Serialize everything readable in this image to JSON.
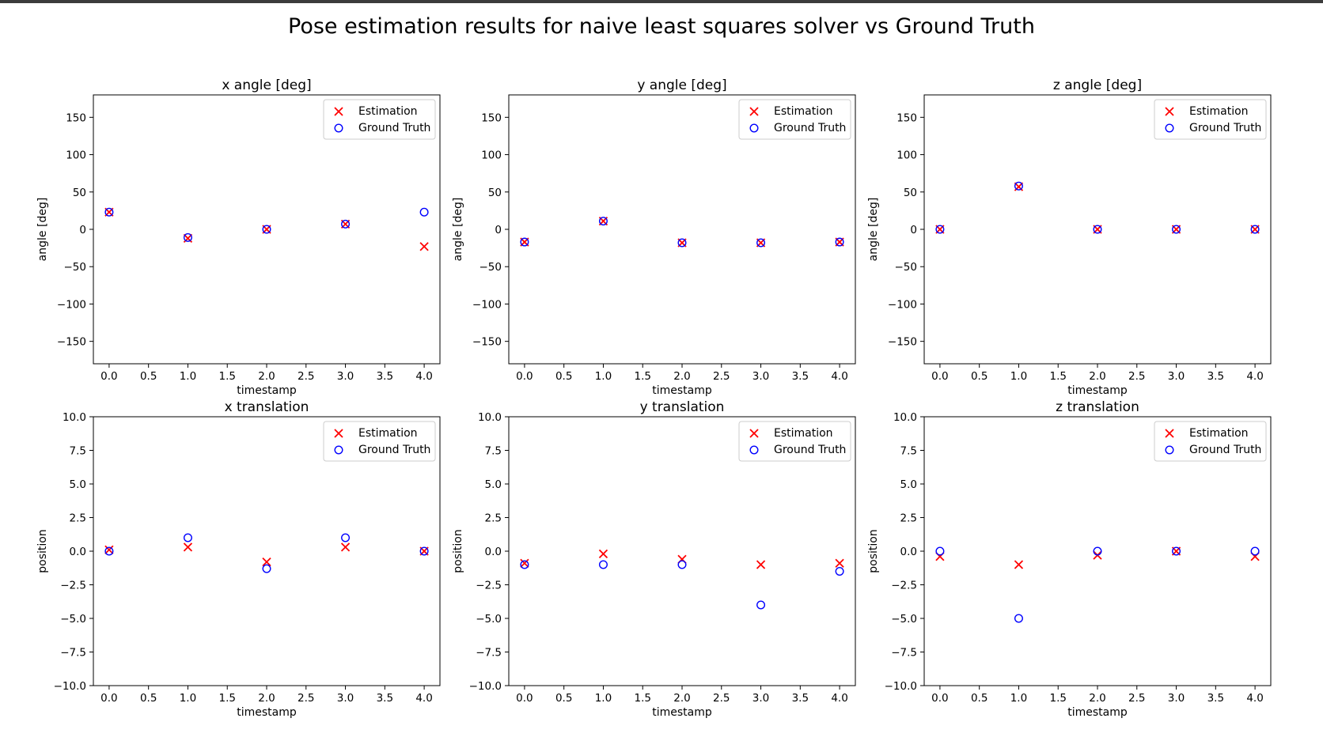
{
  "figure": {
    "suptitle": "Pose estimation results for naive least squares solver vs Ground Truth",
    "colors": {
      "estimation": "#ff0000",
      "ground_truth": "#0000ff",
      "axes": "#000000"
    }
  },
  "chart_data": [
    {
      "type": "scatter",
      "title": "x angle [deg]",
      "xlabel": "timestamp",
      "ylabel": "angle [deg]",
      "xlim": [
        -0.2,
        4.2
      ],
      "ylim": [
        -180,
        180
      ],
      "xticks": [
        0.0,
        0.5,
        1.0,
        1.5,
        2.0,
        2.5,
        3.0,
        3.5,
        4.0
      ],
      "xtick_labels": [
        "0.0",
        "0.5",
        "1.0",
        "1.5",
        "2.0",
        "2.5",
        "3.0",
        "3.5",
        "4.0"
      ],
      "yticks": [
        150,
        100,
        50,
        0,
        -50,
        -100,
        -150
      ],
      "ytick_labels": [
        "150",
        "100",
        "50",
        "0",
        "−50",
        "−100",
        "−150"
      ],
      "legend": "upper right",
      "series": [
        {
          "name": "Estimation",
          "marker": "x",
          "color": "#ff0000",
          "x": [
            0,
            1,
            2,
            3,
            4
          ],
          "y": [
            23,
            -12,
            0,
            7,
            -23
          ]
        },
        {
          "name": "Ground Truth",
          "marker": "o",
          "color": "#0000ff",
          "x": [
            0,
            1,
            2,
            3,
            4
          ],
          "y": [
            23,
            -11,
            0,
            7,
            23
          ]
        }
      ]
    },
    {
      "type": "scatter",
      "title": "y angle [deg]",
      "xlabel": "timestamp",
      "ylabel": "angle [deg]",
      "xlim": [
        -0.2,
        4.2
      ],
      "ylim": [
        -180,
        180
      ],
      "xticks": [
        0.0,
        0.5,
        1.0,
        1.5,
        2.0,
        2.5,
        3.0,
        3.5,
        4.0
      ],
      "xtick_labels": [
        "0.0",
        "0.5",
        "1.0",
        "1.5",
        "2.0",
        "2.5",
        "3.0",
        "3.5",
        "4.0"
      ],
      "yticks": [
        150,
        100,
        50,
        0,
        -50,
        -100,
        -150
      ],
      "ytick_labels": [
        "150",
        "100",
        "50",
        "0",
        "−50",
        "−100",
        "−150"
      ],
      "legend": "upper right",
      "series": [
        {
          "name": "Estimation",
          "marker": "x",
          "color": "#ff0000",
          "x": [
            0,
            1,
            2,
            3,
            4
          ],
          "y": [
            -17,
            11,
            -18,
            -18,
            -17
          ]
        },
        {
          "name": "Ground Truth",
          "marker": "o",
          "color": "#0000ff",
          "x": [
            0,
            1,
            2,
            3,
            4
          ],
          "y": [
            -17,
            11,
            -18,
            -18,
            -17
          ]
        }
      ]
    },
    {
      "type": "scatter",
      "title": "z angle [deg]",
      "xlabel": "timestamp",
      "ylabel": "angle [deg]",
      "xlim": [
        -0.2,
        4.2
      ],
      "ylim": [
        -180,
        180
      ],
      "xticks": [
        0.0,
        0.5,
        1.0,
        1.5,
        2.0,
        2.5,
        3.0,
        3.5,
        4.0
      ],
      "xtick_labels": [
        "0.0",
        "0.5",
        "1.0",
        "1.5",
        "2.0",
        "2.5",
        "3.0",
        "3.5",
        "4.0"
      ],
      "yticks": [
        150,
        100,
        50,
        0,
        -50,
        -100,
        -150
      ],
      "ytick_labels": [
        "150",
        "100",
        "50",
        "0",
        "−50",
        "−100",
        "−150"
      ],
      "legend": "upper right",
      "series": [
        {
          "name": "Estimation",
          "marker": "x",
          "color": "#ff0000",
          "x": [
            0,
            1,
            2,
            3,
            4
          ],
          "y": [
            0,
            57,
            0,
            0,
            0
          ]
        },
        {
          "name": "Ground Truth",
          "marker": "o",
          "color": "#0000ff",
          "x": [
            0,
            1,
            2,
            3,
            4
          ],
          "y": [
            0,
            58,
            0,
            0,
            0
          ]
        }
      ]
    },
    {
      "type": "scatter",
      "title": "x translation",
      "xlabel": "timestamp",
      "ylabel": "position",
      "xlim": [
        -0.2,
        4.2
      ],
      "ylim": [
        -10,
        10
      ],
      "xticks": [
        0.0,
        0.5,
        1.0,
        1.5,
        2.0,
        2.5,
        3.0,
        3.5,
        4.0
      ],
      "xtick_labels": [
        "0.0",
        "0.5",
        "1.0",
        "1.5",
        "2.0",
        "2.5",
        "3.0",
        "3.5",
        "4.0"
      ],
      "yticks": [
        10.0,
        7.5,
        5.0,
        2.5,
        0.0,
        -2.5,
        -5.0,
        -7.5,
        -10.0
      ],
      "ytick_labels": [
        "10.0",
        "7.5",
        "5.0",
        "2.5",
        "0.0",
        "−2.5",
        "−5.0",
        "−7.5",
        "−10.0"
      ],
      "legend": "upper right",
      "series": [
        {
          "name": "Estimation",
          "marker": "x",
          "color": "#ff0000",
          "x": [
            0,
            1,
            2,
            3,
            4
          ],
          "y": [
            0.1,
            0.3,
            -0.8,
            0.3,
            0.0
          ]
        },
        {
          "name": "Ground Truth",
          "marker": "o",
          "color": "#0000ff",
          "x": [
            0,
            1,
            2,
            3,
            4
          ],
          "y": [
            0.0,
            1.0,
            -1.3,
            1.0,
            0.0
          ]
        }
      ]
    },
    {
      "type": "scatter",
      "title": "y translation",
      "xlabel": "timestamp",
      "ylabel": "position",
      "xlim": [
        -0.2,
        4.2
      ],
      "ylim": [
        -10,
        10
      ],
      "xticks": [
        0.0,
        0.5,
        1.0,
        1.5,
        2.0,
        2.5,
        3.0,
        3.5,
        4.0
      ],
      "xtick_labels": [
        "0.0",
        "0.5",
        "1.0",
        "1.5",
        "2.0",
        "2.5",
        "3.0",
        "3.5",
        "4.0"
      ],
      "yticks": [
        10.0,
        7.5,
        5.0,
        2.5,
        0.0,
        -2.5,
        -5.0,
        -7.5,
        -10.0
      ],
      "ytick_labels": [
        "10.0",
        "7.5",
        "5.0",
        "2.5",
        "0.0",
        "−2.5",
        "−5.0",
        "−7.5",
        "−10.0"
      ],
      "legend": "upper right",
      "series": [
        {
          "name": "Estimation",
          "marker": "x",
          "color": "#ff0000",
          "x": [
            0,
            1,
            2,
            3,
            4
          ],
          "y": [
            -0.9,
            -0.2,
            -0.6,
            -1.0,
            -0.9
          ]
        },
        {
          "name": "Ground Truth",
          "marker": "o",
          "color": "#0000ff",
          "x": [
            0,
            1,
            2,
            3,
            4
          ],
          "y": [
            -1.0,
            -1.0,
            -1.0,
            -4.0,
            -1.5
          ]
        }
      ]
    },
    {
      "type": "scatter",
      "title": "z translation",
      "xlabel": "timestamp",
      "ylabel": "position",
      "xlim": [
        -0.2,
        4.2
      ],
      "ylim": [
        -10,
        10
      ],
      "xticks": [
        0.0,
        0.5,
        1.0,
        1.5,
        2.0,
        2.5,
        3.0,
        3.5,
        4.0
      ],
      "xtick_labels": [
        "0.0",
        "0.5",
        "1.0",
        "1.5",
        "2.0",
        "2.5",
        "3.0",
        "3.5",
        "4.0"
      ],
      "yticks": [
        10.0,
        7.5,
        5.0,
        2.5,
        0.0,
        -2.5,
        -5.0,
        -7.5,
        -10.0
      ],
      "ytick_labels": [
        "10.0",
        "7.5",
        "5.0",
        "2.5",
        "0.0",
        "−2.5",
        "−5.0",
        "−7.5",
        "−10.0"
      ],
      "legend": "upper right",
      "series": [
        {
          "name": "Estimation",
          "marker": "x",
          "color": "#ff0000",
          "x": [
            0,
            1,
            2,
            3,
            4
          ],
          "y": [
            -0.4,
            -1.0,
            -0.3,
            0.0,
            -0.4
          ]
        },
        {
          "name": "Ground Truth",
          "marker": "o",
          "color": "#0000ff",
          "x": [
            0,
            1,
            2,
            3,
            4
          ],
          "y": [
            0.0,
            -5.0,
            0.0,
            0.0,
            0.0
          ]
        }
      ]
    }
  ]
}
